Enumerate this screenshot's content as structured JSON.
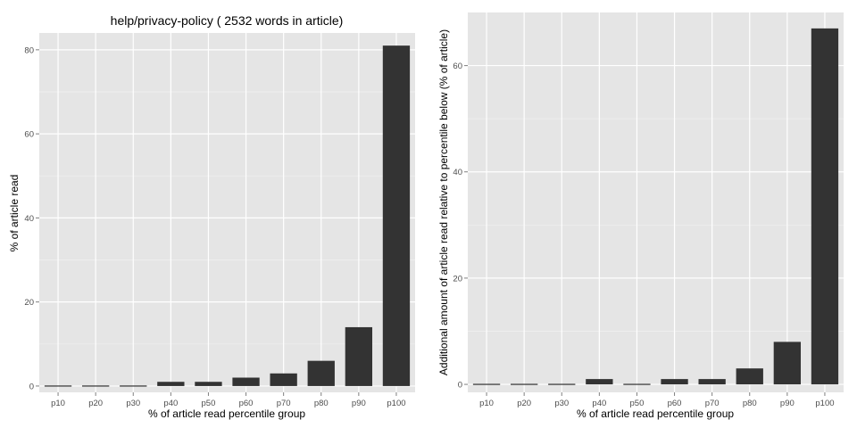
{
  "colors": {
    "panel_background": "#e5e5e5",
    "grid_major": "#ffffff",
    "grid_minor": "#f0f0f0",
    "bar_fill": "#333333",
    "tick_text": "#4d4d4d"
  },
  "chart_data": [
    {
      "type": "bar",
      "title": "help/privacy-policy ( 2532 words in article)",
      "xlabel": "% of article read percentile group",
      "ylabel": "% of article read",
      "categories": [
        "p10",
        "p20",
        "p30",
        "p40",
        "p50",
        "p60",
        "p70",
        "p80",
        "p90",
        "p100"
      ],
      "values": [
        0,
        0,
        0,
        1,
        1,
        2,
        3,
        6,
        14,
        81
      ],
      "ylim": [
        -1.5,
        84
      ],
      "yticks": [
        0,
        20,
        40,
        60,
        80
      ],
      "grid": true,
      "legend": "none"
    },
    {
      "type": "bar",
      "title": "",
      "xlabel": "% of article read percentile group",
      "ylabel": "Additional amount of article read relative to percentile below (% of article)",
      "categories": [
        "p10",
        "p20",
        "p30",
        "p40",
        "p50",
        "p60",
        "p70",
        "p80",
        "p90",
        "p100"
      ],
      "values": [
        0,
        0,
        0,
        1,
        0,
        1,
        1,
        3,
        8,
        67
      ],
      "ylim": [
        -1.5,
        70
      ],
      "yticks": [
        0,
        20,
        40,
        60
      ],
      "grid": true,
      "legend": "none"
    }
  ]
}
